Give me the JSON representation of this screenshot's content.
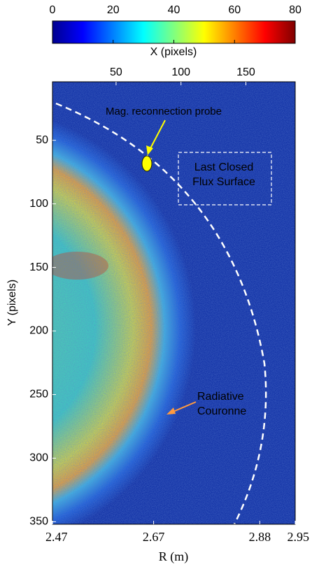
{
  "chart_data": {
    "type": "image",
    "colormap": "jet",
    "clim": [
      0,
      80
    ],
    "cticks": [
      0,
      20,
      40,
      60,
      80
    ],
    "x2label": "X (pixels)",
    "x2lim": [
      1,
      188
    ],
    "x2ticks": [
      50,
      100,
      150
    ],
    "ylabel": "Y (pixels)",
    "ylim": [
      4,
      352
    ],
    "yticks": [
      50,
      100,
      150,
      200,
      250,
      300,
      350
    ],
    "xlabel": "R (m)",
    "xlim": [
      2.47,
      2.95
    ],
    "xticks": [
      2.47,
      2.67,
      2.88,
      2.95
    ],
    "annotations": [
      {
        "text": "Mag. reconnection probe",
        "color": "#ffff00"
      },
      {
        "lines": [
          "Last Closed",
          "Flux Surface"
        ],
        "color": "#ffffff"
      },
      {
        "lines": [
          "Radiative",
          "Couronne"
        ],
        "color": "#ff9a40"
      }
    ]
  }
}
